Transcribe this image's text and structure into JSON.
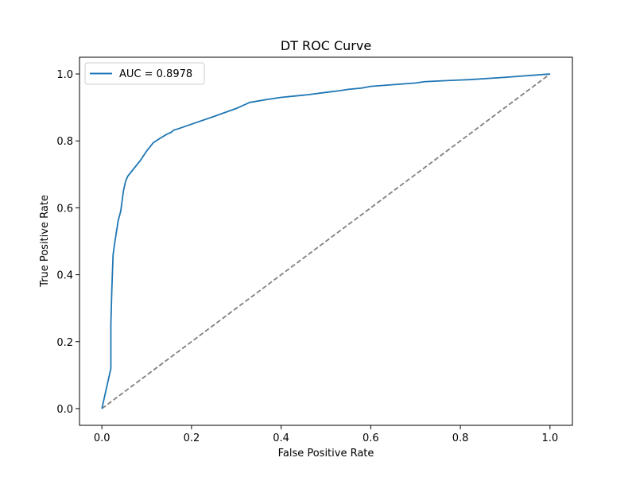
{
  "chart_data": {
    "type": "line",
    "title": "DT ROC Curve",
    "xlabel": "False Positive Rate",
    "ylabel": "True Positive Rate",
    "xlim": [
      -0.05,
      1.05
    ],
    "ylim": [
      -0.05,
      1.05
    ],
    "xticks": [
      0.0,
      0.2,
      0.4,
      0.6,
      0.8,
      1.0
    ],
    "yticks": [
      0.0,
      0.2,
      0.4,
      0.6,
      0.8,
      1.0
    ],
    "xtick_labels": [
      "0.0",
      "0.2",
      "0.4",
      "0.6",
      "0.8",
      "1.0"
    ],
    "ytick_labels": [
      "0.0",
      "0.2",
      "0.4",
      "0.6",
      "0.8",
      "1.0"
    ],
    "grid": false,
    "legend_position": "top-left",
    "series": [
      {
        "name": "AUC = 0.8978",
        "color": "#1f77b4",
        "style": "solid",
        "x": [
          0.0,
          0.02,
          0.02,
          0.022,
          0.025,
          0.028,
          0.035,
          0.036,
          0.042,
          0.048,
          0.053,
          0.058,
          0.07,
          0.085,
          0.1,
          0.115,
          0.13,
          0.145,
          0.155,
          0.16,
          0.17,
          0.2,
          0.25,
          0.3,
          0.33,
          0.37,
          0.4,
          0.43,
          0.46,
          0.5,
          0.53,
          0.55,
          0.58,
          0.6,
          0.65,
          0.7,
          0.72,
          0.75,
          0.8,
          0.82,
          0.9,
          1.0
        ],
        "y": [
          0.0,
          0.12,
          0.25,
          0.35,
          0.46,
          0.49,
          0.55,
          0.56,
          0.59,
          0.65,
          0.68,
          0.695,
          0.715,
          0.74,
          0.77,
          0.795,
          0.808,
          0.82,
          0.826,
          0.832,
          0.836,
          0.85,
          0.873,
          0.897,
          0.915,
          0.924,
          0.93,
          0.934,
          0.938,
          0.945,
          0.95,
          0.954,
          0.958,
          0.963,
          0.968,
          0.973,
          0.977,
          0.979,
          0.982,
          0.983,
          0.99,
          1.0
        ]
      },
      {
        "name": "",
        "color": "#808080",
        "style": "dashed",
        "x": [
          0.0,
          1.0
        ],
        "y": [
          0.0,
          1.0
        ]
      }
    ]
  }
}
